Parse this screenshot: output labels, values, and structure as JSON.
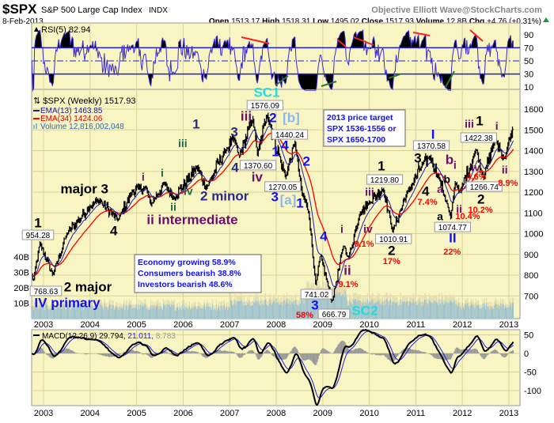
{
  "header": {
    "symbol": "$SPX",
    "name": "S&P 500 Large Cap Index",
    "exchange": "INDX",
    "credit": "Objective Elliott Wave@StockCharts.com",
    "date": "8-Feb-2013",
    "open_label": "Open",
    "open": "1513.17",
    "high_label": "High",
    "high": "1518.31",
    "low_label": "Low",
    "low": "1495.02",
    "close_label": "Close",
    "close": "1517.93",
    "volume_label": "Volume",
    "volume": "12.8B",
    "chg_label": "Chg",
    "chg": "+4.76 (+0.31%)"
  },
  "rsi_panel": {
    "label": "RSI(5) 82.94"
  },
  "legend": {
    "price": "$SPX (Weekly) 1517.93",
    "ema13": "EMA(13) 1463.85",
    "ema34": "EMA(34) 1424.06",
    "volume": "Volume 12,816,002,048"
  },
  "macd_panel": {
    "label": "MACD(12,26,9)",
    "macd": "29.794,",
    "signal": "21.011,",
    "hist": "8.783"
  },
  "sentiment_box": [
    "Economy growing 58.9%",
    "Consumers bearish 38.8%",
    "Investors bearish 48.6%"
  ],
  "target_box": [
    "2013 price target",
    "SPX 1536-1556 or",
    "SPX 1650-1700"
  ],
  "chart_data": {
    "type": "line",
    "title": "$SPX S&P 500 Large Cap Index (Weekly)",
    "x_ticks": [
      "2003",
      "2004",
      "2005",
      "2006",
      "2007",
      "2008",
      "2009",
      "2010",
      "2011",
      "2012",
      "2013"
    ],
    "price_ticks": [
      "1600",
      "1500",
      "1400",
      "1300",
      "1200",
      "1100",
      "1000",
      "900",
      "800",
      "700"
    ],
    "volume_ticks": [
      "40B",
      "30B",
      "20B",
      "10B"
    ],
    "rsi_ticks": [
      "90",
      "70",
      "50",
      "30",
      "10"
    ],
    "macd_ticks": [
      "50",
      "0",
      "-50",
      "-100"
    ],
    "ylim_price": [
      600,
      1650
    ],
    "colors": {
      "price": "#000000",
      "ema13": "#2020b0",
      "ema34": "#ff0000",
      "rsi": "#3a2ad0",
      "macd": "#000000",
      "signal": "#2020e0",
      "hist": "#999999",
      "volume": "#8cbcd8"
    },
    "price_path": [
      [
        2002.75,
        800
      ],
      [
        2002.78,
        769
      ],
      [
        2002.92,
        954
      ],
      [
        2003.2,
        800
      ],
      [
        2003.5,
        1000
      ],
      [
        2004.0,
        1130
      ],
      [
        2004.2,
        1160
      ],
      [
        2004.6,
        1065
      ],
      [
        2004.9,
        1200
      ],
      [
        2005.2,
        1225
      ],
      [
        2005.3,
        1140
      ],
      [
        2005.6,
        1240
      ],
      [
        2005.8,
        1170
      ],
      [
        2006.3,
        1320
      ],
      [
        2006.5,
        1220
      ],
      [
        2006.9,
        1400
      ],
      [
        2007.1,
        1460
      ],
      [
        2007.2,
        1370
      ],
      [
        2007.5,
        1550
      ],
      [
        2007.6,
        1380
      ],
      [
        2007.8,
        1576
      ],
      [
        2008.2,
        1270
      ],
      [
        2008.4,
        1440
      ],
      [
        2008.55,
        1200
      ],
      [
        2008.7,
        1100
      ],
      [
        2008.85,
        750
      ],
      [
        2008.95,
        900
      ],
      [
        2009.2,
        667
      ],
      [
        2009.45,
        950
      ],
      [
        2009.55,
        880
      ],
      [
        2009.8,
        1100
      ],
      [
        2010.0,
        1150
      ],
      [
        2010.3,
        1219
      ],
      [
        2010.5,
        1010
      ],
      [
        2010.8,
        1190
      ],
      [
        2011.15,
        1340
      ],
      [
        2011.3,
        1370
      ],
      [
        2011.5,
        1270
      ],
      [
        2011.7,
        1120
      ],
      [
        2011.75,
        1075
      ],
      [
        2011.85,
        1250
      ],
      [
        2011.95,
        1200
      ],
      [
        2012.3,
        1410
      ],
      [
        2012.45,
        1267
      ],
      [
        2012.7,
        1460
      ],
      [
        2012.9,
        1360
      ],
      [
        2013.11,
        1518
      ]
    ],
    "annotations": [
      {
        "text": "SC1",
        "date": 2007.8,
        "price": 1669,
        "color": "#22dddd",
        "size": "large"
      },
      {
        "text": "iii",
        "date": 2007.42,
        "price": 1581,
        "color": "#6a0e6a",
        "size": "large"
      },
      {
        "text": "2",
        "date": 2007.93,
        "price": 1554,
        "color": "#1010ff",
        "size": "large"
      },
      {
        "text": "[b]",
        "date": 2008.32,
        "price": 1543,
        "color": "#88b8f0",
        "size": "large"
      },
      {
        "text": "3",
        "date": 2007.1,
        "price": 1486,
        "color": "#2a2a8a",
        "size": "large"
      },
      {
        "text": "4",
        "date": 2008.19,
        "price": 1436,
        "color": "#1010ff",
        "size": "large"
      },
      {
        "text": "1",
        "date": 2007.85,
        "price": 1364,
        "color": "#1010ff",
        "size": "large"
      },
      {
        "text": "4",
        "date": 2007.18,
        "price": 1314,
        "color": "#2a2a8a",
        "size": "large"
      },
      {
        "text": "iv",
        "date": 2007.59,
        "price": 1269,
        "color": "#6a0e6a",
        "size": "large"
      },
      {
        "text": "2",
        "date": 2008.65,
        "price": 1345,
        "color": "#1010ff",
        "size": "large"
      },
      {
        "text": "3",
        "date": 2007.97,
        "price": 1173,
        "color": "#1010ff",
        "size": "large"
      },
      {
        "text": "[a]",
        "date": 2008.26,
        "price": 1173,
        "color": "#88b8f0",
        "size": "large"
      },
      {
        "text": "1",
        "date": 2008.51,
        "price": 1143,
        "color": "#1010ff",
        "size": "large"
      },
      {
        "text": "1",
        "date": 2006.28,
        "price": 1524,
        "color": "#2a2a8a",
        "size": "large"
      },
      {
        "text": "iii",
        "date": 2005.99,
        "price": 1432,
        "color": "#1a6a4a",
        "size": "medium"
      },
      {
        "text": "i",
        "date": 2005.55,
        "price": 1288,
        "color": "#1a6a4a",
        "size": "medium"
      },
      {
        "text": "i",
        "date": 2005.14,
        "price": 1269,
        "color": "#6a0e6a",
        "size": "medium"
      },
      {
        "text": "iv",
        "date": 2006.11,
        "price": 1200,
        "color": "#1a6a4a",
        "size": "medium"
      },
      {
        "text": "ii",
        "date": 2005.79,
        "price": 1124,
        "color": "#1a6a4a",
        "size": "medium"
      },
      {
        "text": "2 minor",
        "date": 2006.89,
        "price": 1177,
        "color": "#2a2a8a",
        "size": "large"
      },
      {
        "text": "ii intermediate",
        "date": 2006.2,
        "price": 1078,
        "color": "#6a0e6a",
        "size": "large"
      },
      {
        "text": "major 3",
        "date": 2003.88,
        "price": 1211,
        "color": "#000000",
        "size": "large"
      },
      {
        "text": "4",
        "date": 2004.51,
        "price": 1010,
        "color": "#000000",
        "size": "large"
      },
      {
        "text": "1",
        "date": 2002.88,
        "price": 1048,
        "color": "#000000",
        "size": "large"
      },
      {
        "text": "2 major",
        "date": 2003.56,
        "price": 648,
        "color": "#000000",
        "size": "large"
      },
      {
        "text": "IV primary",
        "date": 2003.22,
        "price": 556,
        "color": "#1010ff",
        "size": "large"
      },
      {
        "text": "3",
        "date": 2008.8,
        "price": 564,
        "color": "#1010ff",
        "size": "large"
      },
      {
        "text": "58%",
        "date": 2008.71,
        "price": 510,
        "color": "#ff0000",
        "size": "small"
      },
      {
        "text": "SC2",
        "date": 2009.65,
        "price": 510,
        "color": "#22dddd",
        "size": "large"
      },
      {
        "text": "ii",
        "date": 2009.48,
        "price": 766,
        "color": "#6a0e6a",
        "size": "large"
      },
      {
        "text": "9.1%",
        "date": 2009.5,
        "price": 670,
        "color": "#ff0000",
        "size": "small"
      },
      {
        "text": "4",
        "date": 2009.02,
        "price": 983,
        "color": "#1010ff",
        "size": "large"
      },
      {
        "text": "i",
        "date": 2009.41,
        "price": 1017,
        "color": "#6a0e6a",
        "size": "medium"
      },
      {
        "text": "iv",
        "date": 2010.14,
        "price": 1006,
        "color": "#6a0e6a",
        "size": "medium"
      },
      {
        "text": "9.1%",
        "date": 2009.97,
        "price": 949,
        "color": "#ff0000",
        "size": "small"
      },
      {
        "text": "2",
        "date": 2010.48,
        "price": 914,
        "color": "#000000",
        "size": "large"
      },
      {
        "text": "17%",
        "date": 2010.48,
        "price": 865,
        "color": "#ff0000",
        "size": "small"
      },
      {
        "text": "iii",
        "date": 2010.06,
        "price": 1219,
        "color": "#6a0e6a",
        "size": "medium"
      },
      {
        "text": "1",
        "date": 2010.26,
        "price": 1322,
        "color": "#000000",
        "size": "large"
      },
      {
        "text": "3",
        "date": 2011.08,
        "price": 1379,
        "color": "#000000",
        "size": "large"
      },
      {
        "text": "I",
        "date": 2011.37,
        "price": 1474,
        "color": "#1010ff",
        "size": "large"
      },
      {
        "text": "b",
        "date": 2011.66,
        "price": 1379,
        "color": "#6a0e6a",
        "size": "large"
      },
      {
        "text": "i",
        "date": 2011.84,
        "price": 1326,
        "color": "#6a0e6a",
        "size": "medium"
      },
      {
        "text": "b",
        "date": 2011.67,
        "price": 1257,
        "color": "#000000",
        "size": "medium"
      },
      {
        "text": "a",
        "date": 2011.52,
        "price": 1211,
        "color": "#6a0e6a",
        "size": "medium"
      },
      {
        "text": "4",
        "date": 2011.21,
        "price": 1200,
        "color": "#000000",
        "size": "large"
      },
      {
        "text": "7.4%",
        "date": 2011.25,
        "price": 1150,
        "color": "#ff0000",
        "size": "small"
      },
      {
        "text": "a",
        "date": 2011.52,
        "price": 1078,
        "color": "#000000",
        "size": "medium"
      },
      {
        "text": "ii",
        "date": 2011.93,
        "price": 1116,
        "color": "#6a0e6a",
        "size": "medium"
      },
      {
        "text": "10.4%",
        "date": 2012.1,
        "price": 1070,
        "color": "#ff0000",
        "size": "small"
      },
      {
        "text": "II",
        "date": 2011.79,
        "price": 975,
        "color": "#1010ff",
        "size": "large"
      },
      {
        "text": "22%",
        "date": 2011.78,
        "price": 910,
        "color": "#ff0000",
        "size": "small"
      },
      {
        "text": "iii",
        "date": 2012.15,
        "price": 1524,
        "color": "#6a0e6a",
        "size": "medium"
      },
      {
        "text": "1",
        "date": 2012.37,
        "price": 1539,
        "color": "#000000",
        "size": "large"
      },
      {
        "text": "i",
        "date": 2012.74,
        "price": 1516,
        "color": "#6a0e6a",
        "size": "medium"
      },
      {
        "text": "iv",
        "date": 2012.29,
        "price": 1299,
        "color": "#6a0e6a",
        "size": "medium"
      },
      {
        "text": "4.6%",
        "date": 2012.3,
        "price": 1261,
        "color": "#ff0000",
        "size": "small"
      },
      {
        "text": "ii",
        "date": 2012.91,
        "price": 1303,
        "color": "#6a0e6a",
        "size": "medium"
      },
      {
        "text": "8.9%",
        "date": 2012.98,
        "price": 1242,
        "color": "#ff0000",
        "size": "small"
      },
      {
        "text": "2",
        "date": 2012.4,
        "price": 1162,
        "color": "#000000",
        "size": "large"
      },
      {
        "text": "10.2%",
        "date": 2012.39,
        "price": 1112,
        "color": "#ff0000",
        "size": "small"
      }
    ],
    "price_labels": [
      {
        "text": "1576.09",
        "date": 2007.76,
        "price": 1619
      },
      {
        "text": "1440.24",
        "date": 2008.29,
        "price": 1478
      },
      {
        "text": "1370.60",
        "date": 2007.61,
        "price": 1330
      },
      {
        "text": "1270.05",
        "date": 2008.14,
        "price": 1227
      },
      {
        "text": "954.28",
        "date": 2002.88,
        "price": 994
      },
      {
        "text": "768.63",
        "date": 2002.73,
        "price": 636
      },
      {
        "text": "741.02",
        "date": 2008.65,
        "price": 632
      },
      {
        "text": "666.79",
        "date": 2009.14,
        "price": 510
      },
      {
        "text": "1010.91",
        "date": 2010.52,
        "price": 975
      },
      {
        "text": "1219.80",
        "date": 2010.33,
        "price": 1261
      },
      {
        "text": "1370.58",
        "date": 2011.35,
        "price": 1417
      },
      {
        "text": "1074.77",
        "date": 2011.79,
        "price": 1032
      },
      {
        "text": "1422.38",
        "date": 2012.35,
        "price": 1463
      },
      {
        "text": "1266.74",
        "date": 2012.47,
        "price": 1227
      }
    ]
  }
}
